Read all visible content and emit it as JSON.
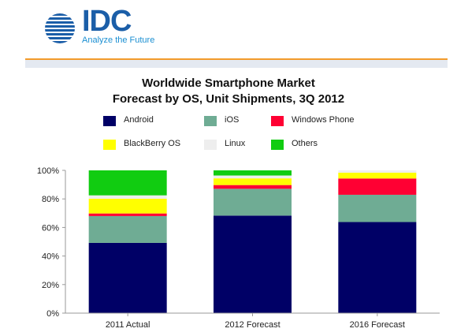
{
  "logo": {
    "text": "IDC",
    "tagline": "Analyze the Future"
  },
  "colors": {
    "Android": "#000066",
    "iOS": "#6fac94",
    "Windows Phone": "#ff0033",
    "BlackBerry OS": "#ffff00",
    "Linux": "#eeeeee",
    "Others": "#11cc11",
    "logo_blue": "#1b5ea8",
    "accent_orange": "#f39b2b"
  },
  "chart_data": {
    "type": "bar",
    "stacked": true,
    "title": "Worldwide Smartphone Market",
    "subtitle": "Forecast by OS, Unit Shipments, 3Q 2012",
    "categories": [
      "2011 Actual",
      "2012 Forecast",
      "2016 Forecast"
    ],
    "series": [
      {
        "name": "Android",
        "values": [
          49.2,
          68.3,
          63.8
        ]
      },
      {
        "name": "iOS",
        "values": [
          18.8,
          18.8,
          19.1
        ]
      },
      {
        "name": "Windows Phone",
        "values": [
          1.8,
          2.6,
          11.4
        ]
      },
      {
        "name": "BlackBerry OS",
        "values": [
          10.3,
          4.7,
          4.1
        ]
      },
      {
        "name": "Linux",
        "values": [
          2.4,
          2.0,
          1.6
        ]
      },
      {
        "name": "Others",
        "values": [
          17.5,
          3.6,
          0.0
        ]
      }
    ],
    "yticks": [
      "0%",
      "20%",
      "40%",
      "60%",
      "80%",
      "100%"
    ],
    "ylim": [
      0,
      100
    ],
    "grid": false,
    "legend_position": "top"
  }
}
